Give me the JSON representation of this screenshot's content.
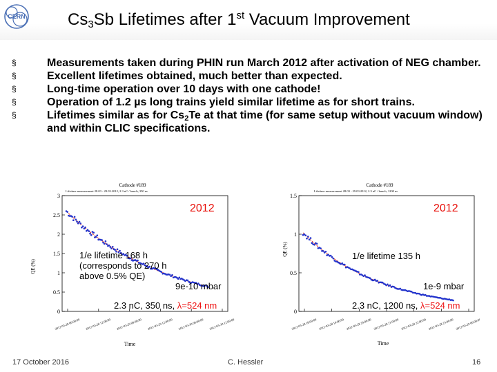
{
  "header": {
    "logo_text": "CERN",
    "title_part1": "Cs",
    "title_sub": "3",
    "title_part2": "Sb Lifetimes after 1",
    "title_sup": "st",
    "title_part3": " Vacuum Improvement"
  },
  "bullets": [
    {
      "marker": "§",
      "text": "Measurements taken during PHIN run March 2012 after activation of NEG chamber."
    },
    {
      "marker": "§",
      "text": "Excellent lifetimes obtained, much better than expected."
    },
    {
      "marker": "§",
      "text": "Long-time operation over 10 days with one cathode!"
    },
    {
      "marker": "§",
      "text": "Operation of 1.2 µs long trains yield similar lifetime as for short trains."
    },
    {
      "marker": "§",
      "text_a": "Lifetimes similar as for Cs",
      "text_sub": "2",
      "text_b": "Te at that time (for same setup without vacuum window) and within CLIC specifications."
    }
  ],
  "charts": [
    {
      "title": "Cathode #189",
      "subtitle": "Lifetime measurement 28.03 - 29.03.2012, 2.3 nC / bunch, 350 ns",
      "year": "2012",
      "lifetime": "1/e lifetime 168 h",
      "lifetime_note_1": "(corresponds to 270 h",
      "lifetime_note_2": "above 0.5% QE)",
      "pressure": "9e-10 mbar",
      "beam_a": "2.3 nC, 350 ns, ",
      "beam_lambda": "λ=524 nm",
      "xlabel": "Time",
      "ylabel": "QE (%)",
      "yticks": [
        "0",
        "0.5",
        "1",
        "1.5",
        "2",
        "2.5",
        "3"
      ],
      "xticks": [
        "2012-03-28 00:00:00",
        "2012-03-28 12:00:00",
        "2012-03-29 00:00:00",
        "2012-03-29 12:00:00",
        "2012-03-30 00:00:00",
        "2012-03-30 12:00:00"
      ]
    },
    {
      "title": "Cathode #189",
      "subtitle": "Lifetime measurement 28.03 - 29.03.2012, 2.3 nC / bunch, 1200 ns",
      "year": "2012",
      "lifetime": "1/e lifetime 135 h",
      "pressure": "1e-9 mbar",
      "beam_a": "2.3 nC, 1200 ns, ",
      "beam_lambda": "λ=524 nm",
      "xlabel": "Time",
      "ylabel": "QE (%)",
      "yticks": [
        "0",
        "0.5",
        "1",
        "1.5"
      ],
      "xticks": [
        "2012-03-28 18:00:00",
        "2012-03-28 19:00:00",
        "2012-03-28 20:00:00",
        "2012-03-28 21:00:00",
        "2012-03-28 22:00:00",
        "2012-03-28 23:00:00",
        "2012-03-29 00:00:00"
      ]
    }
  ],
  "footer": {
    "date": "17 October 2016",
    "author": "C. Hessler",
    "page": "16"
  },
  "colors": {
    "points": "#2233cc",
    "fit": "#e03020",
    "accent": "#e8100a",
    "logo": "#4a6fb5"
  }
}
